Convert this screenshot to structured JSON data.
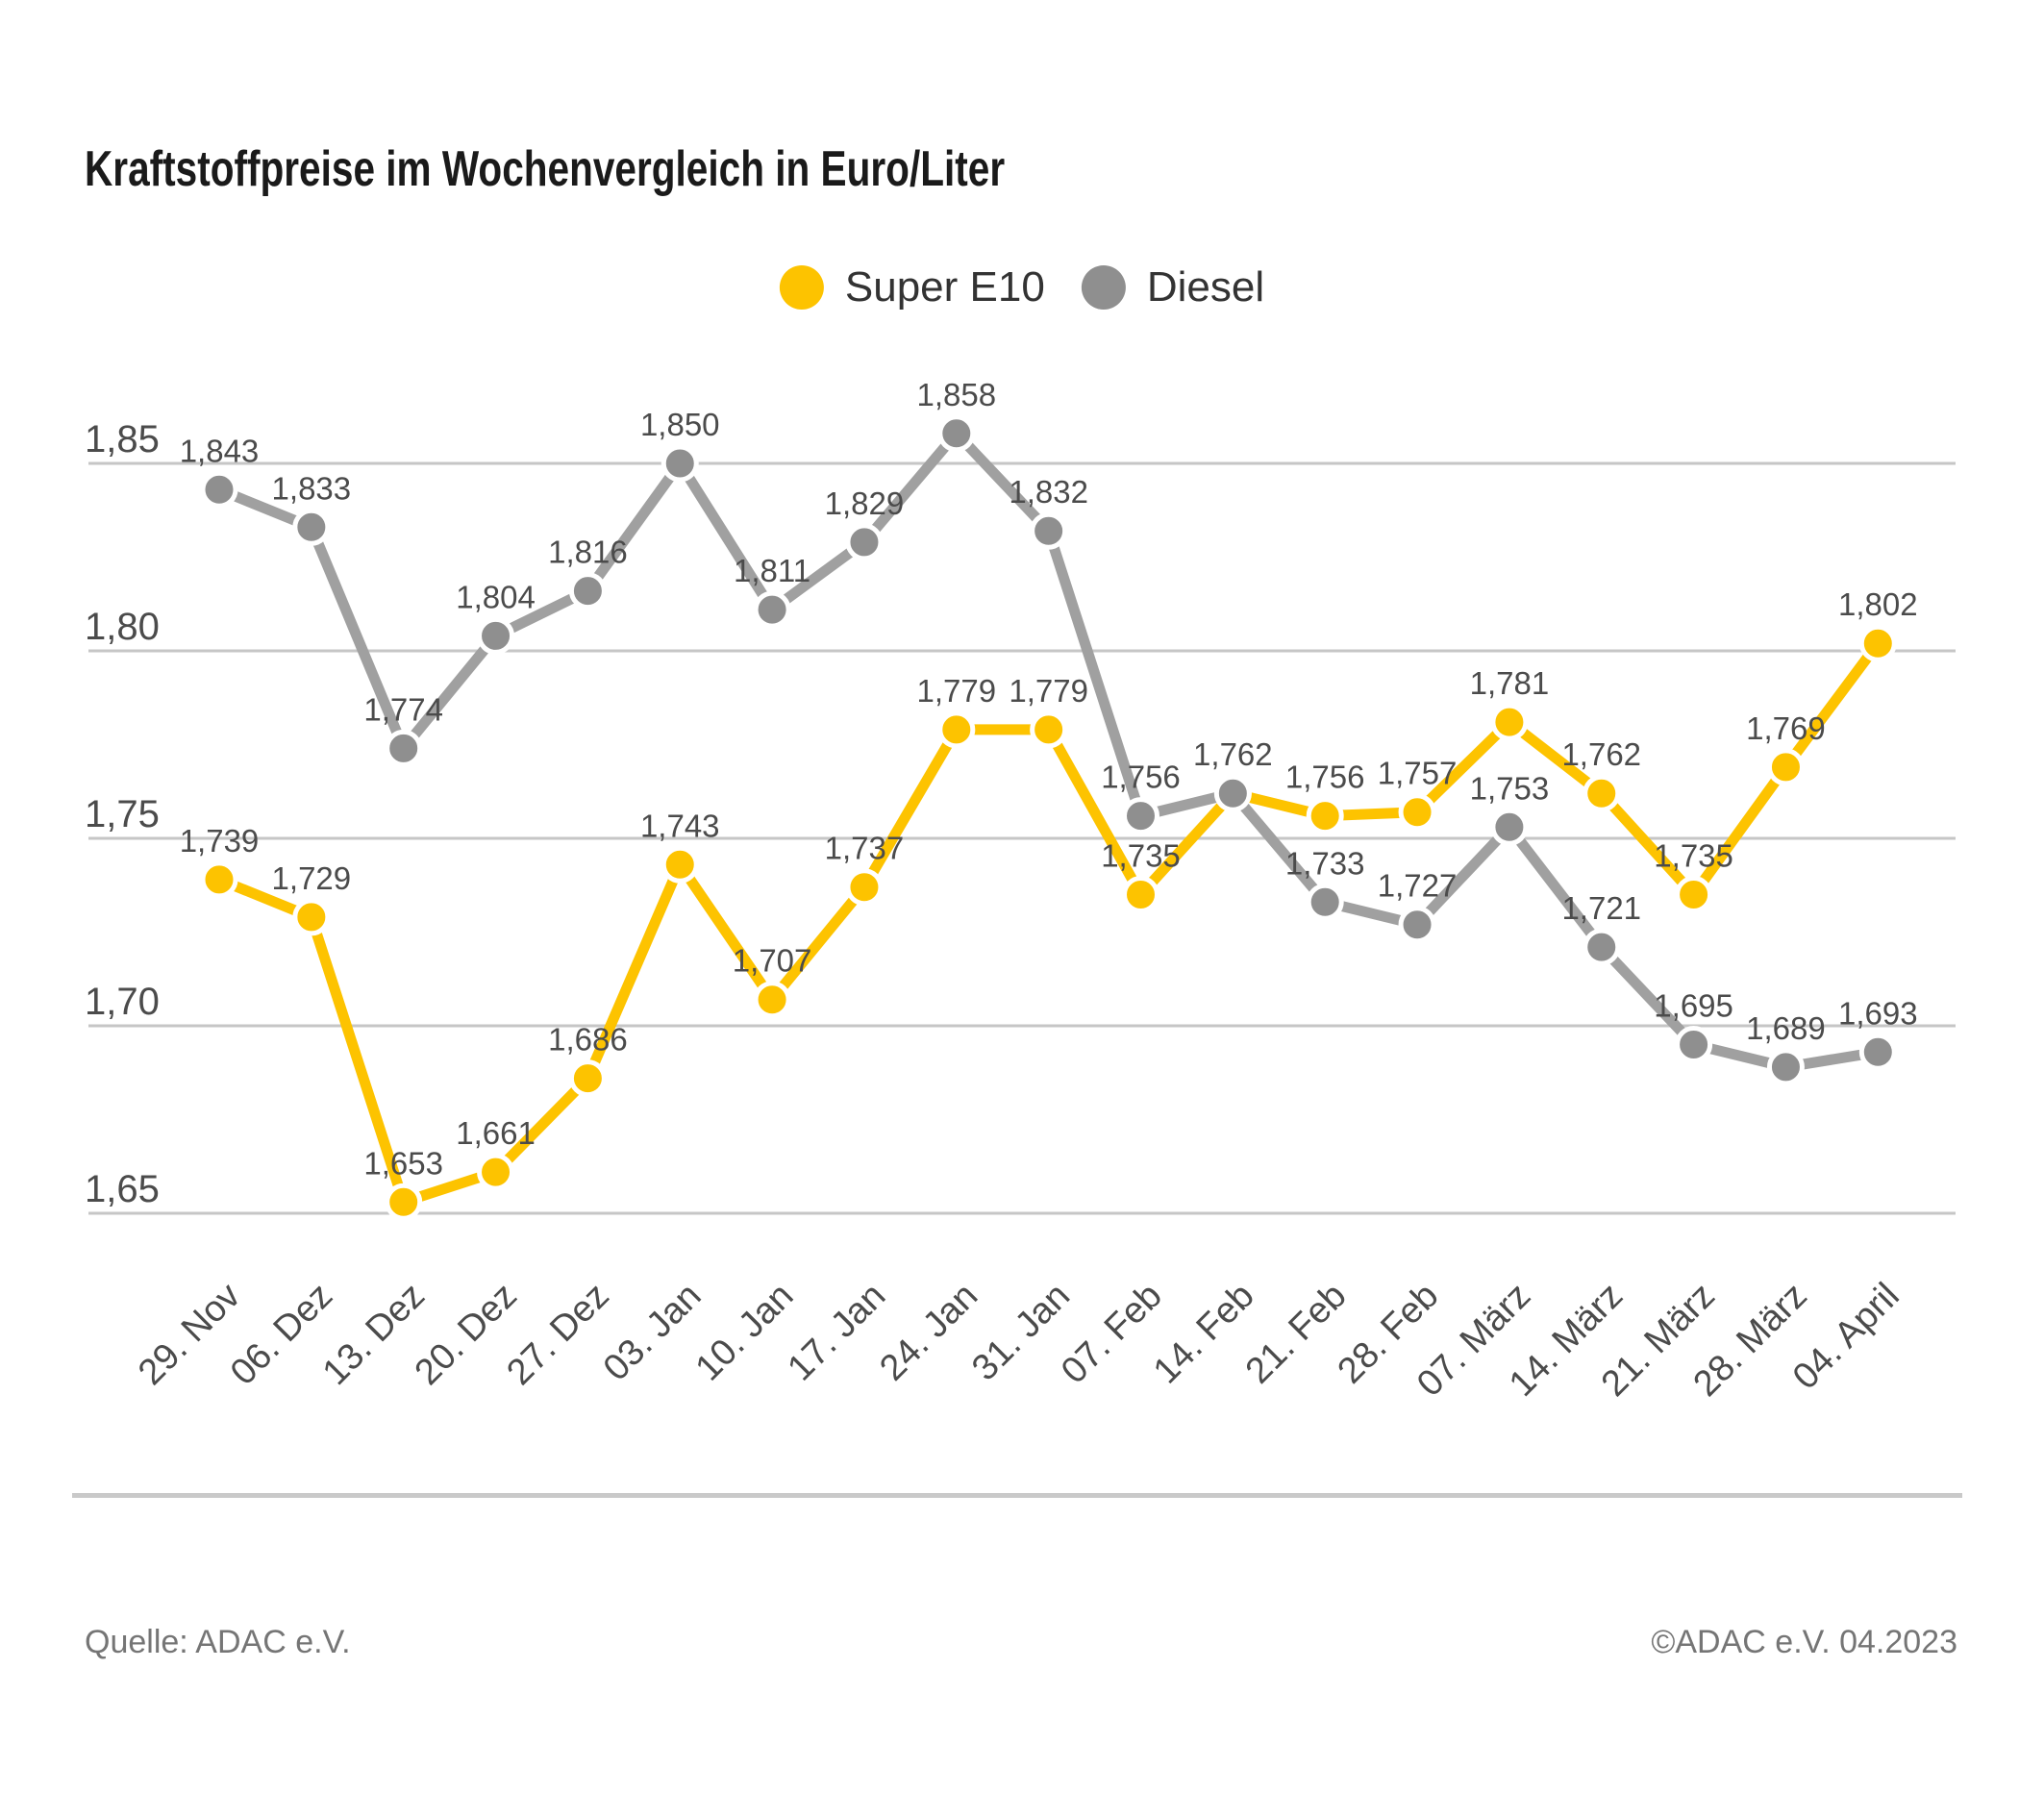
{
  "title": "Kraftstoffpreise im Wochenvergleich in Euro/Liter",
  "legend": [
    {
      "label": "Super E10",
      "color": "#FDC300"
    },
    {
      "label": "Diesel",
      "color": "#8F8F8F"
    }
  ],
  "footer": {
    "source": "Quelle: ADAC e.V.",
    "copyright": "©ADAC e.V. 04.2023"
  },
  "chart_data": {
    "type": "line",
    "title": "Kraftstoffpreise im Wochenvergleich in Euro/Liter",
    "xlabel": "",
    "ylabel": "Euro/Liter",
    "grid": "horizontal",
    "legend_position": "top-center",
    "number_format": "comma-decimal",
    "ylim": [
      1.64,
      1.87
    ],
    "categories": [
      "29. Nov",
      "06. Dez",
      "13. Dez",
      "20. Dez",
      "27. Dez",
      "03. Jan",
      "10. Jan",
      "17. Jan",
      "24. Jan",
      "31. Jan",
      "07. Feb",
      "14. Feb",
      "21. Feb",
      "28. Feb",
      "07. März",
      "14. März",
      "21. März",
      "28. März",
      "04. April"
    ],
    "y_ticks": [
      {
        "value": 1.85,
        "label": "1,85"
      },
      {
        "value": 1.8,
        "label": "1,80"
      },
      {
        "value": 1.75,
        "label": "1,75"
      },
      {
        "value": 1.7,
        "label": "1,70"
      },
      {
        "value": 1.65,
        "label": "1,65"
      }
    ],
    "series": [
      {
        "name": "Super E10",
        "dot_color": "#FDC300",
        "line_color": "#FDC300",
        "values": [
          1.739,
          1.729,
          1.653,
          1.661,
          1.686,
          1.743,
          1.707,
          1.737,
          1.779,
          1.779,
          1.735,
          1.762,
          1.756,
          1.757,
          1.781,
          1.762,
          1.735,
          1.769,
          1.802
        ],
        "labels": [
          "1,739",
          "1,729",
          "1,653",
          "1,661",
          "1,686",
          "1,743",
          "1,707",
          "1,737",
          "1,779",
          "1,779",
          "1,735",
          null,
          "1,756",
          "1,757",
          "1,781",
          "1,762",
          "1,735",
          "1,769",
          "1,802"
        ]
      },
      {
        "name": "Diesel",
        "dot_color": "#8F8F8F",
        "line_color": "#A0A0A0",
        "values": [
          1.843,
          1.833,
          1.774,
          1.804,
          1.816,
          1.85,
          1.811,
          1.829,
          1.858,
          1.832,
          1.756,
          1.762,
          1.733,
          1.727,
          1.753,
          1.721,
          1.695,
          1.689,
          1.693
        ],
        "labels": [
          "1,843",
          "1,833",
          "1,774",
          "1,804",
          "1,816",
          "1,850",
          "1,811",
          "1,829",
          "1,858",
          "1,832",
          "1,756",
          "1,762",
          "1,733",
          "1,727",
          "1,753",
          "1,721",
          "1,695",
          "1,689",
          "1,693"
        ]
      }
    ]
  }
}
